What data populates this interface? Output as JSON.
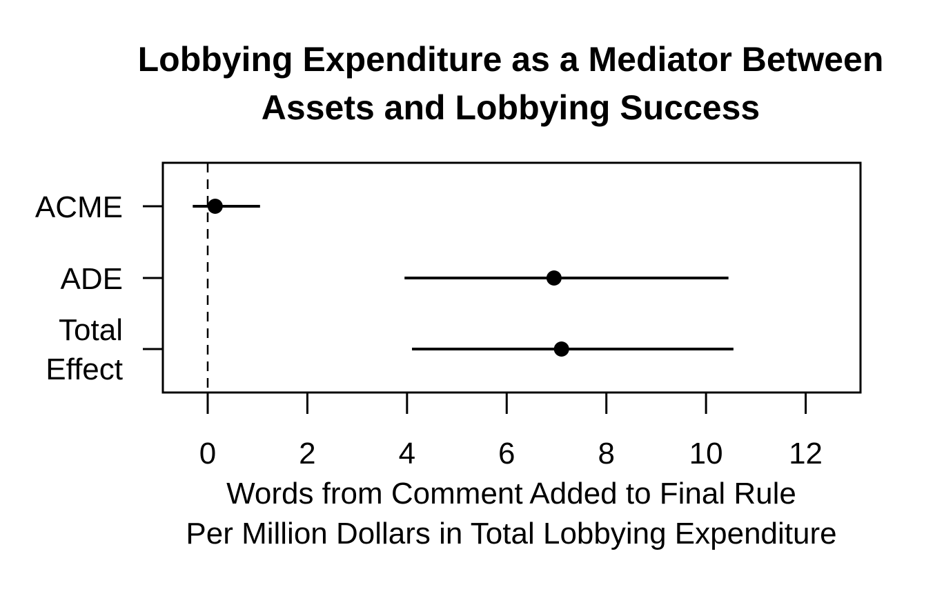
{
  "chart_data": {
    "type": "forest",
    "title": [
      "Lobbying Expenditure as a Mediator Between",
      "Assets and Lobbying Success"
    ],
    "xlabel": [
      "Words from Comment Added to Final Rule",
      "Per Million Dollars in Total Lobbying Expenditure"
    ],
    "xlim": [
      -0.9,
      13.1
    ],
    "xticks": [
      0,
      2,
      4,
      6,
      8,
      10,
      12
    ],
    "reference_line": 0,
    "rows": [
      {
        "label": [
          "ACME"
        ],
        "estimate": 0.15,
        "lower": -0.3,
        "upper": 1.05
      },
      {
        "label": [
          "ADE"
        ],
        "estimate": 6.95,
        "lower": 3.95,
        "upper": 10.45
      },
      {
        "label": [
          "Total",
          "Effect"
        ],
        "estimate": 7.1,
        "lower": 4.1,
        "upper": 10.55
      }
    ]
  }
}
